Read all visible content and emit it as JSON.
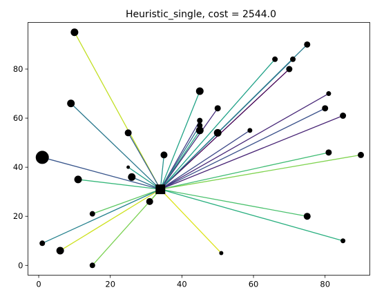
{
  "chart_data": {
    "type": "scatter",
    "title": "Heuristic_single, cost = 2544.0",
    "xlabel": "",
    "ylabel": "",
    "xlim": [
      -3,
      92.5
    ],
    "ylim": [
      -4,
      99
    ],
    "x_ticks": [
      0,
      20,
      40,
      60,
      80
    ],
    "y_ticks": [
      0,
      20,
      40,
      60,
      80
    ],
    "grid": false,
    "depot": {
      "x": 34,
      "y": 31,
      "marker": "square",
      "color": "#000000"
    },
    "points": [
      {
        "x": 1,
        "y": 44,
        "size": 17,
        "edge_color": "#39568c"
      },
      {
        "x": 10,
        "y": 95,
        "size": 9,
        "edge_color": "#c2df23"
      },
      {
        "x": 9,
        "y": 66,
        "size": 9,
        "edge_color": "#2a788e"
      },
      {
        "x": 25,
        "y": 54,
        "size": 8,
        "edge_color": "#355f8d"
      },
      {
        "x": 11,
        "y": 35,
        "size": 9,
        "edge_color": "#35b779"
      },
      {
        "x": 26,
        "y": 36,
        "size": 9,
        "edge_color": "#2c728e"
      },
      {
        "x": 25,
        "y": 40,
        "size": 3,
        "edge_color": "#1f9e89"
      },
      {
        "x": 15,
        "y": 21,
        "size": 6,
        "edge_color": "#5ec962"
      },
      {
        "x": 31,
        "y": 26,
        "size": 8,
        "edge_color": "#a0da39"
      },
      {
        "x": 1,
        "y": 9,
        "size": 6,
        "edge_color": "#26828e"
      },
      {
        "x": 6,
        "y": 6,
        "size": 9,
        "edge_color": "#cde11d"
      },
      {
        "x": 15,
        "y": 0,
        "size": 6,
        "edge_color": "#7ad151"
      },
      {
        "x": 35,
        "y": 45,
        "size": 8,
        "edge_color": "#21918c"
      },
      {
        "x": 45,
        "y": 71,
        "size": 9,
        "edge_color": "#20a386"
      },
      {
        "x": 45,
        "y": 59,
        "size": 6,
        "edge_color": "#433e85"
      },
      {
        "x": 45,
        "y": 57,
        "size": 6,
        "edge_color": "#2d708e"
      },
      {
        "x": 45,
        "y": 55,
        "size": 9,
        "edge_color": "#22a884"
      },
      {
        "x": 50,
        "y": 64,
        "size": 7,
        "edge_color": "#472d7b"
      },
      {
        "x": 50,
        "y": 54,
        "size": 9,
        "edge_color": "#25858e"
      },
      {
        "x": 59,
        "y": 55,
        "size": 5,
        "edge_color": "#3e4989"
      },
      {
        "x": 66,
        "y": 84,
        "size": 6,
        "edge_color": "#1fa188"
      },
      {
        "x": 71,
        "y": 84,
        "size": 6,
        "edge_color": "#31688e"
      },
      {
        "x": 70,
        "y": 80,
        "size": 7,
        "edge_color": "#440154"
      },
      {
        "x": 75,
        "y": 90,
        "size": 7,
        "edge_color": "#287c8e"
      },
      {
        "x": 81,
        "y": 70,
        "size": 5,
        "edge_color": "#482878"
      },
      {
        "x": 80,
        "y": 64,
        "size": 7,
        "edge_color": "#3b528b"
      },
      {
        "x": 85,
        "y": 61,
        "size": 7,
        "edge_color": "#482475"
      },
      {
        "x": 81,
        "y": 46,
        "size": 7,
        "edge_color": "#3fbc73"
      },
      {
        "x": 90,
        "y": 45,
        "size": 7,
        "edge_color": "#7fd34e"
      },
      {
        "x": 75,
        "y": 20,
        "size": 8,
        "edge_color": "#4ac16d"
      },
      {
        "x": 85,
        "y": 10,
        "size": 5,
        "edge_color": "#29af7f"
      },
      {
        "x": 51,
        "y": 5,
        "size": 4,
        "edge_color": "#dde318"
      }
    ]
  }
}
